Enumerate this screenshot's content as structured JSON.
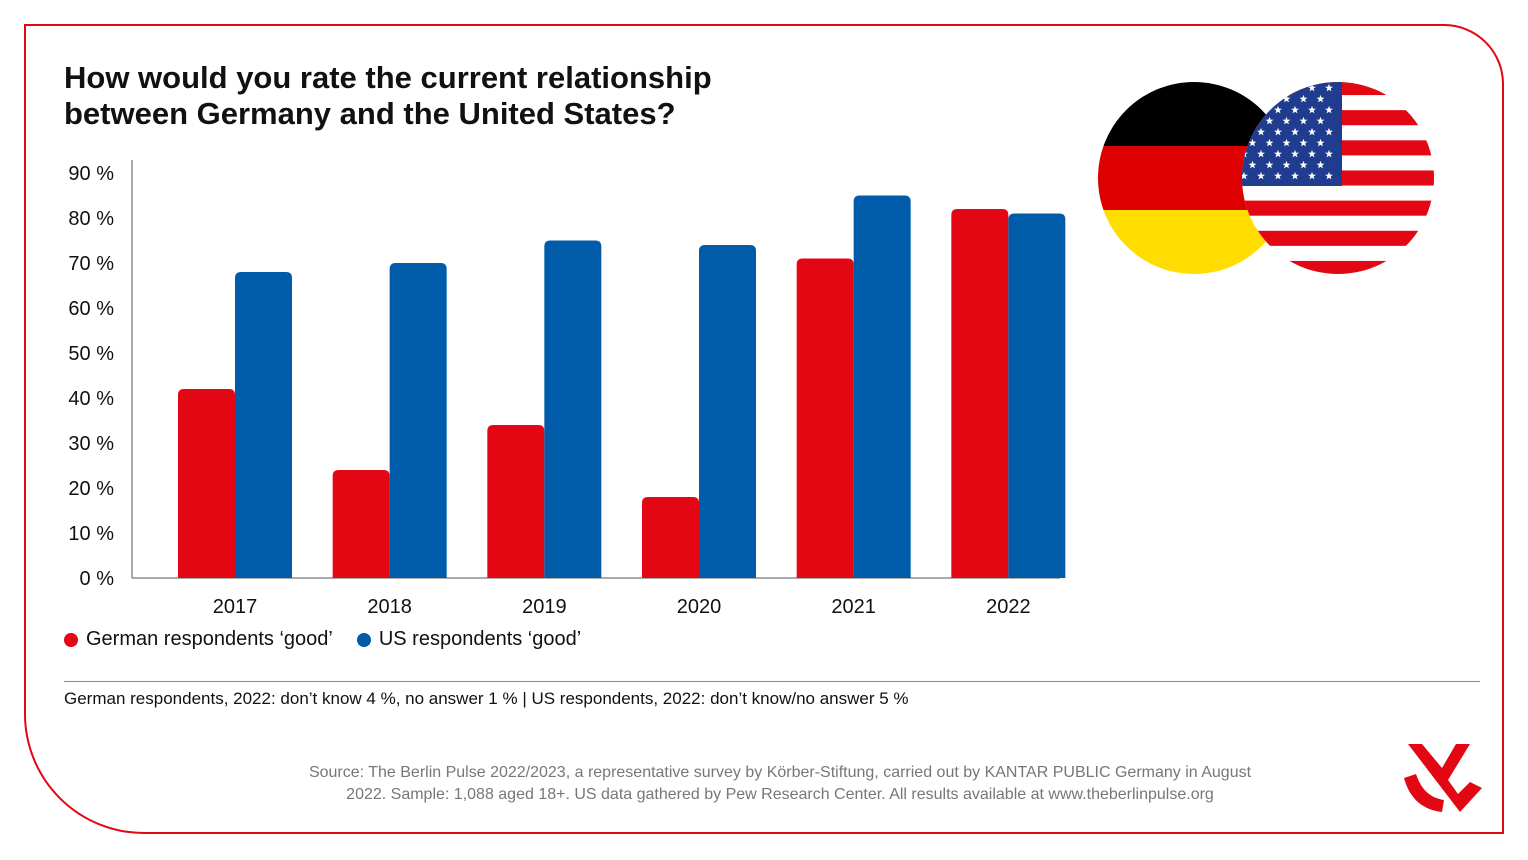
{
  "title_lines": [
    "How would you rate the current relationship",
    "between Germany and the United States?"
  ],
  "colors": {
    "german": "#e30613",
    "us": "#005ca9",
    "axis": "#555555",
    "frame": "#e30613"
  },
  "legend": [
    {
      "label": "German respondents ‘good’",
      "color": "#e30613"
    },
    {
      "label": "US respondents ‘good’",
      "color": "#005ca9"
    }
  ],
  "note": "German respondents, 2022: don’t know 4 %, no answer 1 % | US respondents, 2022: don’t know/no answer 5 %",
  "source_lines": [
    "Source: The Berlin Pulse 2022/2023, a representative survey by Körber-Stiftung, carried out by KANTAR PUBLIC Germany in August",
    "2022. Sample: 1,088 aged 18+. US data gathered by Pew Research Center. All results available at www.theberlinpulse.org"
  ],
  "icons": {
    "flags": "germany-usa-flags-icon",
    "logo": "koerber-logo-icon"
  },
  "chart_data": {
    "type": "bar",
    "categories": [
      "2017",
      "2018",
      "2019",
      "2020",
      "2021",
      "2022"
    ],
    "series": [
      {
        "name": "German respondents ‘good’",
        "values": [
          42,
          24,
          34,
          18,
          71,
          82
        ]
      },
      {
        "name": "US respondents ‘good’",
        "values": [
          68,
          70,
          75,
          74,
          85,
          81
        ]
      }
    ],
    "ylim": [
      0,
      90
    ],
    "yticks": [
      0,
      10,
      20,
      30,
      40,
      50,
      60,
      70,
      80,
      90
    ],
    "ytick_labels": [
      "0 %",
      "10 %",
      "20 %",
      "30 %",
      "40 %",
      "50 %",
      "60 %",
      "70 %",
      "80 %",
      "90 %"
    ],
    "grid": false,
    "legend_position": "bottom-left"
  }
}
